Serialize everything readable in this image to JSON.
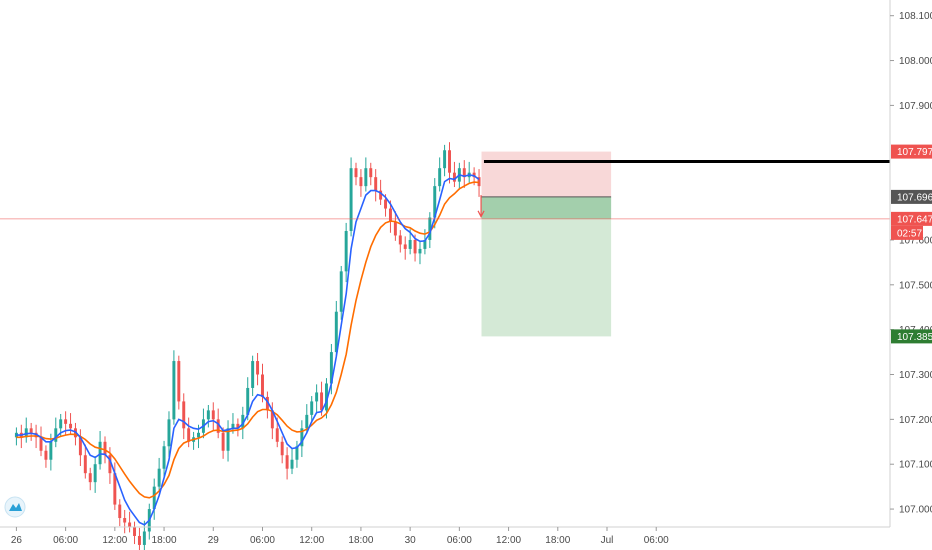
{
  "chart_data": {
    "type": "candlestick",
    "title": "",
    "ylim": [
      106.96,
      108.135
    ],
    "x_range_hours": [
      -2.0,
      106.5
    ],
    "y_ticks": [
      {
        "value": 107.0,
        "label": "107.000"
      },
      {
        "value": 107.1,
        "label": "107.100"
      },
      {
        "value": 107.2,
        "label": "107.200"
      },
      {
        "value": 107.3,
        "label": "107.300"
      },
      {
        "value": 107.4,
        "label": "107.400"
      },
      {
        "value": 107.5,
        "label": "107.500"
      },
      {
        "value": 107.6,
        "label": "107.600"
      },
      {
        "value": 107.9,
        "label": "107.900"
      },
      {
        "value": 108.0,
        "label": "108.000"
      },
      {
        "value": 108.1,
        "label": "108.100"
      }
    ],
    "x_ticks": [
      {
        "hour": 0,
        "label": "26"
      },
      {
        "hour": 6,
        "label": "06:00"
      },
      {
        "hour": 12,
        "label": "12:00"
      },
      {
        "hour": 18,
        "label": "18:00"
      },
      {
        "hour": 24,
        "label": "29"
      },
      {
        "hour": 30,
        "label": "06:00"
      },
      {
        "hour": 36,
        "label": "12:00"
      },
      {
        "hour": 42,
        "label": "18:00"
      },
      {
        "hour": 48,
        "label": "30"
      },
      {
        "hour": 54,
        "label": "06:00"
      },
      {
        "hour": 60,
        "label": "12:00"
      },
      {
        "hour": 66,
        "label": "18:00"
      },
      {
        "hour": 72,
        "label": "Jul"
      },
      {
        "hour": 78,
        "label": "06:00"
      }
    ],
    "candles_close": [
      107.17,
      107.16,
      107.18,
      107.17,
      107.16,
      107.13,
      107.11,
      107.15,
      107.18,
      107.2,
      107.19,
      107.18,
      107.16,
      107.12,
      107.08,
      107.06,
      107.1,
      107.15,
      107.12,
      107.08,
      107.01,
      106.98,
      106.97,
      106.96,
      106.94,
      106.92,
      106.95,
      107.0,
      107.05,
      107.09,
      107.14,
      107.2,
      107.33,
      107.24,
      107.18,
      107.15,
      107.16,
      107.17,
      107.2,
      107.22,
      107.2,
      107.17,
      107.13,
      107.18,
      107.19,
      107.18,
      107.21,
      107.27,
      107.33,
      107.3,
      107.25,
      107.22,
      107.18,
      107.15,
      107.12,
      107.09,
      107.11,
      107.14,
      107.18,
      107.21,
      107.24,
      107.26,
      107.22,
      107.28,
      107.35,
      107.44,
      107.53,
      107.62,
      107.76,
      107.74,
      107.72,
      107.76,
      107.74,
      107.71,
      107.69,
      107.67,
      107.64,
      107.61,
      107.59,
      107.58,
      107.6,
      107.57,
      107.58,
      107.6,
      107.65,
      107.72,
      107.76,
      107.8,
      107.75,
      107.73,
      107.76,
      107.74,
      107.75,
      107.74,
      107.72
    ],
    "candles_open": [
      107.16,
      107.17,
      107.16,
      107.18,
      107.17,
      107.16,
      107.13,
      107.11,
      107.15,
      107.18,
      107.2,
      107.19,
      107.18,
      107.16,
      107.12,
      107.08,
      107.06,
      107.1,
      107.15,
      107.12,
      107.08,
      107.01,
      106.98,
      106.97,
      106.96,
      106.94,
      106.92,
      106.95,
      107.0,
      107.05,
      107.09,
      107.14,
      107.2,
      107.33,
      107.24,
      107.18,
      107.15,
      107.16,
      107.17,
      107.2,
      107.22,
      107.2,
      107.17,
      107.13,
      107.18,
      107.19,
      107.18,
      107.21,
      107.27,
      107.33,
      107.3,
      107.25,
      107.22,
      107.18,
      107.15,
      107.12,
      107.09,
      107.11,
      107.14,
      107.18,
      107.21,
      107.24,
      107.26,
      107.22,
      107.28,
      107.35,
      107.44,
      107.53,
      107.62,
      107.76,
      107.74,
      107.72,
      107.76,
      107.74,
      107.71,
      107.69,
      107.67,
      107.64,
      107.61,
      107.59,
      107.58,
      107.6,
      107.57,
      107.58,
      107.6,
      107.65,
      107.72,
      107.76,
      107.8,
      107.75,
      107.73,
      107.76,
      107.74,
      107.75,
      107.74
    ],
    "candle_step_hours": 0.6,
    "ema_fast": [
      107.165,
      107.165,
      107.168,
      107.169,
      107.167,
      107.16,
      107.15,
      107.15,
      107.16,
      107.17,
      107.175,
      107.176,
      107.172,
      107.16,
      107.14,
      107.12,
      107.115,
      107.123,
      107.122,
      107.11,
      107.08,
      107.05,
      107.02,
      107.0,
      106.985,
      106.97,
      106.965,
      106.975,
      107.0,
      107.03,
      107.07,
      107.11,
      107.18,
      107.2,
      107.195,
      107.185,
      107.18,
      107.178,
      107.185,
      107.195,
      107.197,
      107.19,
      107.175,
      107.177,
      107.18,
      107.18,
      107.19,
      107.21,
      107.24,
      107.255,
      107.252,
      107.24,
      107.22,
      107.195,
      107.17,
      107.145,
      107.135,
      107.137,
      107.15,
      107.17,
      107.195,
      107.215,
      107.217,
      107.24,
      107.28,
      107.34,
      107.41,
      107.48,
      107.58,
      107.64,
      107.67,
      107.7,
      107.71,
      107.71,
      107.705,
      107.695,
      107.68,
      107.66,
      107.64,
      107.625,
      107.617,
      107.603,
      107.597,
      107.598,
      107.615,
      107.65,
      107.69,
      107.73,
      107.737,
      107.735,
      107.745,
      107.742,
      107.745,
      107.743,
      107.735
    ],
    "ema_slow": [
      107.16,
      107.16,
      107.162,
      107.163,
      107.163,
      107.161,
      107.157,
      107.156,
      107.158,
      107.162,
      107.165,
      107.167,
      107.166,
      107.162,
      107.155,
      107.145,
      107.138,
      107.135,
      107.132,
      107.125,
      107.112,
      107.095,
      107.078,
      107.062,
      107.048,
      107.035,
      107.027,
      107.025,
      107.03,
      107.04,
      107.055,
      107.075,
      107.11,
      107.135,
      107.147,
      107.152,
      107.155,
      107.158,
      107.163,
      107.17,
      107.175,
      107.176,
      107.173,
      107.173,
      107.175,
      107.176,
      107.18,
      107.19,
      107.205,
      107.217,
      107.222,
      107.222,
      107.218,
      107.21,
      107.198,
      107.185,
      107.176,
      107.172,
      107.173,
      107.178,
      107.187,
      107.198,
      107.203,
      107.213,
      107.233,
      107.26,
      107.3,
      107.345,
      107.41,
      107.465,
      107.51,
      107.55,
      107.585,
      107.61,
      107.628,
      107.638,
      107.642,
      107.641,
      107.636,
      107.63,
      107.627,
      107.62,
      107.615,
      107.613,
      107.618,
      107.634,
      107.655,
      107.68,
      107.694,
      107.703,
      107.714,
      107.72,
      107.726,
      107.729,
      107.728
    ],
    "up_color": "#26a69a",
    "down_color": "#ef5350",
    "ema_fast_color": "#2962ff",
    "ema_slow_color": "#ff6d00",
    "resistance_level": 107.775,
    "resistance_color": "#000000",
    "position": {
      "entry": 107.696,
      "stop": 107.797,
      "target": 107.385,
      "stop_color": "#f8d8d8",
      "target_color": "#d4e9d6"
    },
    "current_price": 107.647,
    "price_tags": [
      {
        "value": 107.797,
        "label": "107.797",
        "color": "#ef5350"
      },
      {
        "value": 107.696,
        "label": "107.696",
        "color": "#555555"
      },
      {
        "value": 107.647,
        "label": "107.647",
        "color": "#ef5350"
      },
      {
        "value": 107.385,
        "label": "107.385",
        "color": "#2e7d32"
      }
    ],
    "countdown": "02:57",
    "logo": "tradingview-logo-icon"
  }
}
